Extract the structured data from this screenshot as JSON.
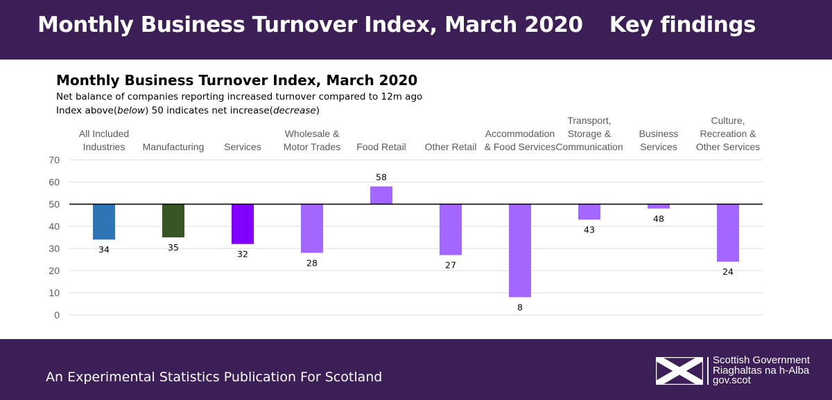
{
  "header": {
    "title": "Monthly Business Turnover Index, March 2020",
    "right": "Key findings"
  },
  "chart_text": {
    "title": "Monthly Business Turnover Index, March 2020",
    "subtitle1": "Net balance of companies reporting increased turnover compared to 12m ago",
    "subtitle2_pre": "Index above(",
    "subtitle2_em1": "below",
    "subtitle2_mid": ") 50 indicates net increase(",
    "subtitle2_em2": "decrease",
    "subtitle2_post": ")"
  },
  "chart_data": {
    "type": "bar",
    "title": "Monthly Business Turnover Index, March 2020",
    "subtitle": "Net balance of companies reporting increased turnover compared to 12m ago. Index above(below) 50 indicates net increase(decrease)",
    "categories": [
      [
        "All Included",
        "Industries"
      ],
      [
        "Manufacturing"
      ],
      [
        "Services"
      ],
      [
        "Wholesale &",
        "Motor Trades"
      ],
      [
        "Food Retail"
      ],
      [
        "Other Retail"
      ],
      [
        "Accommodation",
        "& Food Services"
      ],
      [
        "Transport,",
        "Storage &",
        "Communication"
      ],
      [
        "Business",
        "Services"
      ],
      [
        "Culture,",
        "Recreation &",
        "Other Services"
      ]
    ],
    "values": [
      34,
      35,
      32,
      28,
      58,
      27,
      8,
      43,
      48,
      24
    ],
    "colors": [
      "#2e75b6",
      "#375623",
      "#7f00ff",
      "#a366ff",
      "#a366ff",
      "#a366ff",
      "#a366ff",
      "#a366ff",
      "#a366ff",
      "#a366ff"
    ],
    "baseline": 50,
    "ylim": [
      0,
      70
    ],
    "yticks": [
      0,
      10,
      20,
      30,
      40,
      50,
      60,
      70
    ],
    "grid": true,
    "xlabel": "",
    "ylabel": ""
  },
  "footer": {
    "text": "An Experimental Statistics Publication For Scotland",
    "logo_lines": [
      "Scottish Government",
      "Riaghaltas na h-Alba",
      "gov.scot"
    ]
  }
}
